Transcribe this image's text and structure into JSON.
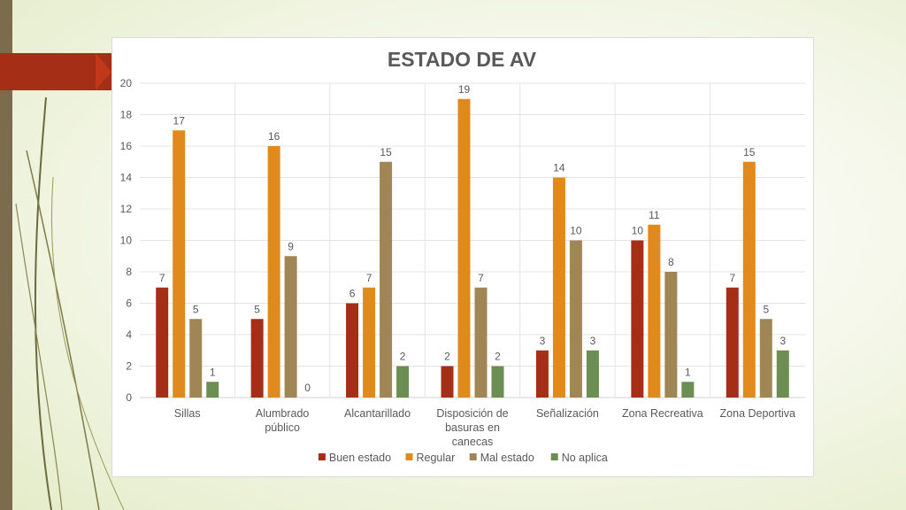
{
  "chart_data": {
    "type": "bar",
    "title": "ESTADO DE AV",
    "categories": [
      [
        "Sillas"
      ],
      [
        "Alumbrado",
        "público"
      ],
      [
        "Alcantarillado"
      ],
      [
        "Disposición de",
        "basuras en",
        "canecas"
      ],
      [
        "Señalización"
      ],
      [
        "Zona Recreativa"
      ],
      [
        "Zona Deportiva"
      ]
    ],
    "series": [
      {
        "name": "Buen estado",
        "color": "#a52e16",
        "values": [
          7,
          5,
          6,
          2,
          3,
          10,
          7
        ]
      },
      {
        "name": "Regular",
        "color": "#e08a1e",
        "values": [
          17,
          16,
          7,
          19,
          14,
          11,
          15
        ]
      },
      {
        "name": "Mal estado",
        "color": "#a18655",
        "values": [
          5,
          9,
          15,
          7,
          10,
          8,
          5
        ]
      },
      {
        "name": "No aplica",
        "color": "#6d8e53",
        "values": [
          1,
          0,
          2,
          2,
          3,
          1,
          3
        ]
      }
    ],
    "ylim": [
      0,
      20
    ],
    "yticks": [
      0,
      2,
      4,
      6,
      8,
      10,
      12,
      14,
      16,
      18,
      20
    ],
    "grid": true,
    "legend": "bottom",
    "data_labels": true
  },
  "theme": {
    "sidebar_color": "#7b6c4e",
    "tab_color": "#a52e16",
    "curve_color": "#6b6a3a"
  }
}
